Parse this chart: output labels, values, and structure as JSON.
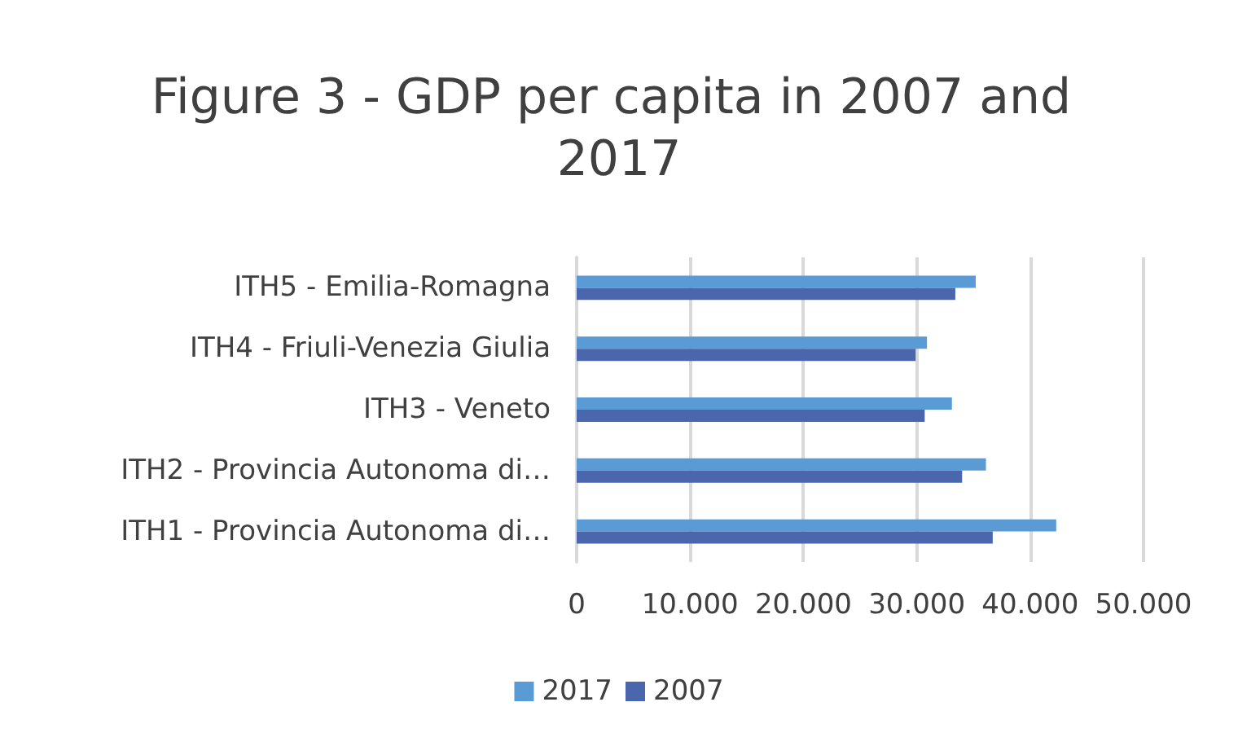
{
  "chart_data": {
    "type": "bar",
    "orientation": "horizontal",
    "title": "Figure 3 - GDP per capita in 2007 and 2017",
    "categories": [
      "ITH5 - Emilia-Romagna",
      "ITH4 - Friuli-Venezia Giulia",
      "ITH3 - Veneto",
      "ITH2 - Provincia Autonoma di…",
      "ITH1 - Provincia Autonoma di…"
    ],
    "series": [
      {
        "name": "2017",
        "color": "#5b9bd5",
        "values": [
          35200,
          30900,
          33100,
          36100,
          42300
        ]
      },
      {
        "name": "2007",
        "color": "#4a67ae",
        "values": [
          33400,
          29900,
          30700,
          34000,
          36700
        ]
      }
    ],
    "xlim": [
      0,
      50000
    ],
    "xticks": [
      0,
      {
        "value": 10000,
        "label": "10.000"
      },
      {
        "value": 20000,
        "label": "20.000"
      },
      {
        "value": 30000,
        "label": "30.000"
      },
      {
        "value": 40000,
        "label": "40.000"
      },
      {
        "value": 50000,
        "label": "50.000"
      }
    ],
    "grid": "x",
    "legend": "bottom"
  }
}
